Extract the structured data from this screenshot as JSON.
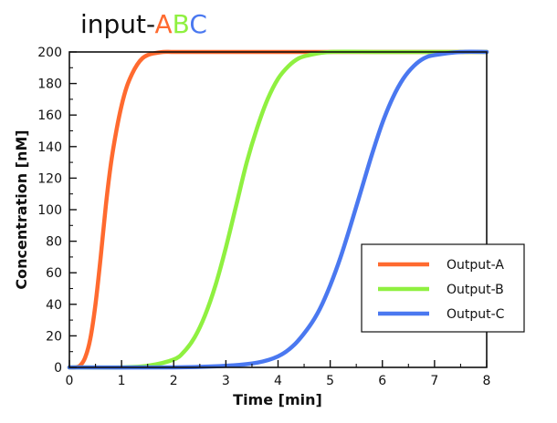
{
  "chart_data": {
    "type": "line",
    "title_parts": [
      {
        "text": "input-",
        "color": "#111111"
      },
      {
        "text": "A",
        "color": "#ff6a2f"
      },
      {
        "text": "B",
        "color": "#8ff040"
      },
      {
        "text": "C",
        "color": "#4a78f0"
      }
    ],
    "xlabel": "Time [min]",
    "ylabel": "Concentration [nM]",
    "xlim": [
      0,
      8
    ],
    "ylim": [
      0,
      200
    ],
    "x_ticks": [
      0,
      1,
      2,
      3,
      4,
      5,
      6,
      7,
      8
    ],
    "y_ticks": [
      0,
      20,
      40,
      60,
      80,
      100,
      120,
      140,
      160,
      180,
      200
    ],
    "grid": false,
    "legend_position": "lower-right",
    "series": [
      {
        "name": "Output-A",
        "color": "#ff6a2f",
        "x": [
          0,
          0.1,
          0.2,
          0.3,
          0.4,
          0.5,
          0.6,
          0.7,
          0.8,
          0.9,
          1.0,
          1.1,
          1.2,
          1.3,
          1.4,
          1.5,
          1.6,
          1.8,
          2.0,
          2.5,
          3.0,
          4.0,
          5.0,
          6.0,
          7.0,
          8.0
        ],
        "y": [
          0,
          0,
          1,
          6,
          18,
          40,
          70,
          103,
          130,
          150,
          166,
          178,
          186,
          192,
          196,
          198,
          199,
          200,
          200,
          200,
          200,
          200,
          200,
          200,
          200,
          200
        ]
      },
      {
        "name": "Output-B",
        "color": "#8ff040",
        "x": [
          0,
          1.0,
          1.5,
          2.0,
          2.2,
          2.4,
          2.6,
          2.8,
          3.0,
          3.2,
          3.4,
          3.6,
          3.8,
          4.0,
          4.2,
          4.4,
          4.6,
          5.0,
          6.0,
          7.0,
          8.0
        ],
        "y": [
          0,
          0,
          1,
          5,
          10,
          19,
          33,
          52,
          76,
          103,
          130,
          152,
          170,
          183,
          191,
          196,
          198,
          200,
          200,
          200,
          200
        ]
      },
      {
        "name": "Output-C",
        "color": "#4a78f0",
        "x": [
          0,
          2.0,
          3.0,
          3.6,
          4.0,
          4.3,
          4.6,
          4.8,
          5.0,
          5.2,
          5.4,
          5.6,
          5.8,
          6.0,
          6.2,
          6.4,
          6.6,
          6.8,
          7.0,
          7.5,
          8.0
        ],
        "y": [
          0,
          0,
          1,
          3,
          7,
          14,
          26,
          37,
          52,
          70,
          91,
          113,
          135,
          155,
          171,
          183,
          191,
          196,
          198,
          200,
          200
        ]
      }
    ]
  }
}
